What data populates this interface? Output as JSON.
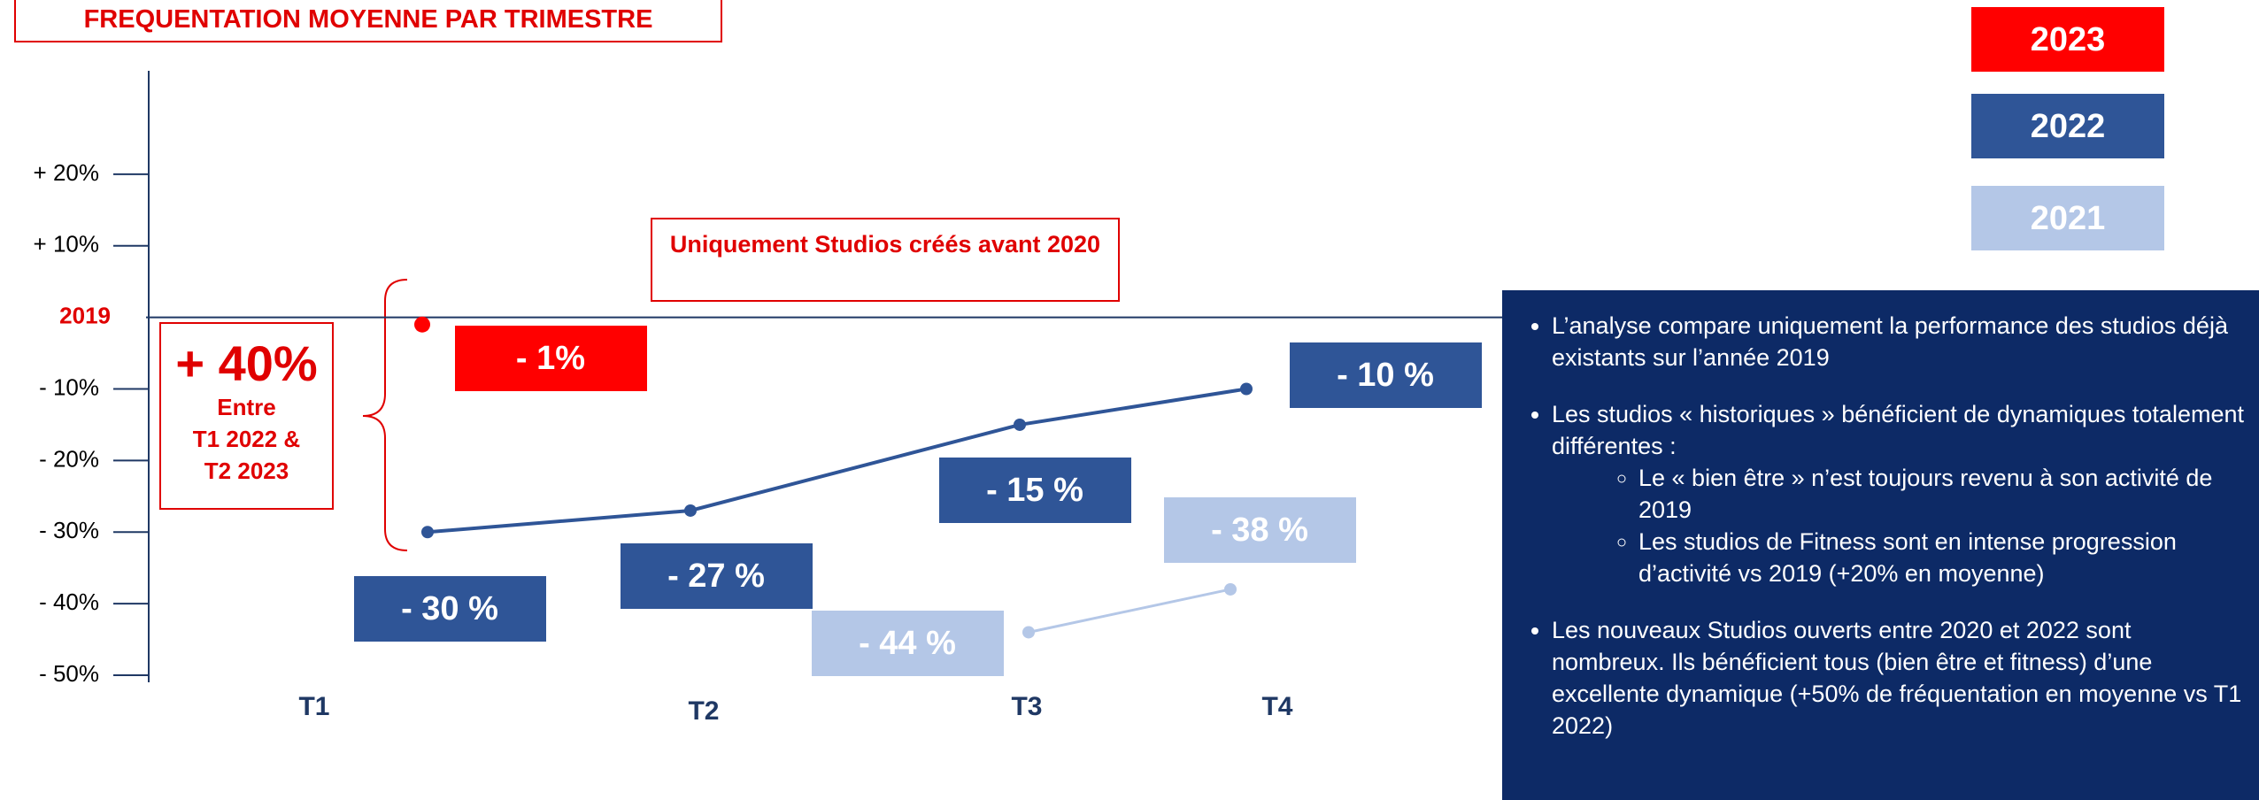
{
  "chart_data": {
    "type": "line",
    "title": "FREQUENTATION MOYENNE PAR TRIMESTRE",
    "categories": [
      "T1",
      "T2",
      "T3",
      "T4"
    ],
    "series": [
      {
        "name": "2023",
        "color": "#ff0000",
        "values": [
          -1,
          null,
          null,
          null
        ],
        "value_labels": [
          "- 1%",
          null,
          null,
          null
        ]
      },
      {
        "name": "2022",
        "color": "#2f5597",
        "values": [
          -30,
          -27,
          -15,
          -10
        ],
        "value_labels": [
          "- 30 %",
          "- 27 %",
          "- 15 %",
          "- 10 %"
        ]
      },
      {
        "name": "2021",
        "color": "#b4c7e7",
        "values": [
          null,
          null,
          -44,
          -38
        ],
        "value_labels": [
          null,
          null,
          "- 44 %",
          "- 38 %"
        ]
      }
    ],
    "ylim": [
      -50,
      30
    ],
    "yticks": [
      {
        "value": 20,
        "label": "+ 20%"
      },
      {
        "value": 10,
        "label": "+ 10%"
      },
      {
        "value": 0,
        "label": "2019"
      },
      {
        "value": -10,
        "label": "- 10%"
      },
      {
        "value": -20,
        "label": "- 20%"
      },
      {
        "value": -30,
        "label": "- 30%"
      },
      {
        "value": -40,
        "label": "- 40%"
      },
      {
        "value": -50,
        "label": "- 50%"
      }
    ],
    "annotations": [
      "Uniquement Studios créés avant 2020",
      "+ 40%",
      "Entre",
      "T1 2022 &",
      "T2 2023"
    ]
  },
  "panel": {
    "bullets": [
      {
        "text": "L’analyse compare uniquement la performance des studios déjà existants sur l’année 2019"
      },
      {
        "text": "Les studios « historiques » bénéficient de dynamiques totalement différentes :",
        "sub": [
          "Le « bien être » n’est toujours revenu à son activité de 2019",
          "Les studios de Fitness sont en intense progression d’activité vs 2019 (+20% en moyenne)"
        ]
      },
      {
        "text": "Les nouveaux Studios ouverts entre 2020 et 2022 sont nombreux. Ils bénéficient tous (bien être et fitness) d’une excellente dynamique (+50% de fréquentation en moyenne vs T1 2022)"
      }
    ]
  }
}
